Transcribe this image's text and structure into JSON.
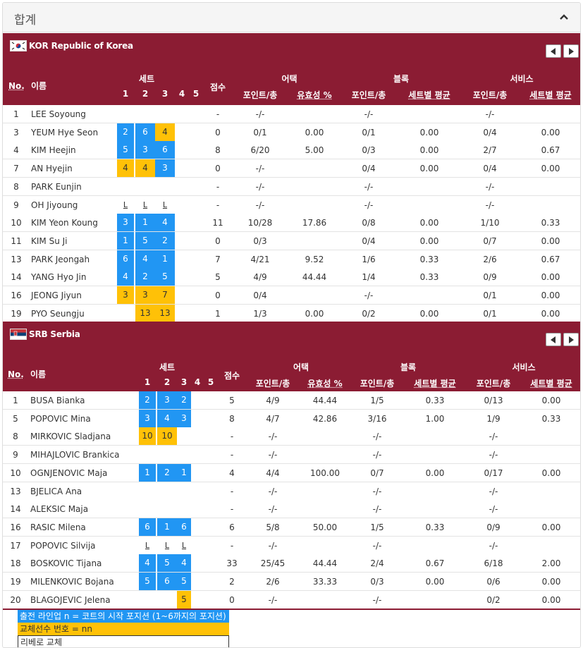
{
  "panel": {
    "title": "합계"
  },
  "headers": {
    "no": "No.",
    "name": "이름",
    "sets": "세트",
    "set_nums": [
      "1",
      "2",
      "3",
      "4",
      "5"
    ],
    "points": "점수",
    "attack": "어택",
    "block": "블록",
    "serve": "서비스",
    "pts_total": "포인트/총",
    "efficiency": "유효성 %",
    "per_set_avg": "세트별 평균"
  },
  "teams": [
    {
      "name": "KOR Republic of Korea",
      "flag": "kor-flag",
      "players": [
        {
          "no": "1",
          "name": "LEE Soyoung",
          "sets": [
            "",
            "",
            "",
            "",
            ""
          ],
          "types": [
            "",
            "",
            "",
            "",
            ""
          ],
          "points": "-",
          "atk_pt": "-/-",
          "atk_eff": "",
          "blk_pt": "-/-",
          "blk_avg": "",
          "srv_pt": "-/-",
          "srv_avg": ""
        },
        {
          "no": "3",
          "name": "YEUM Hye Seon",
          "sets": [
            "2",
            "6",
            "4",
            "",
            ""
          ],
          "types": [
            "start",
            "start",
            "sub",
            "",
            ""
          ],
          "points": "0",
          "atk_pt": "0/1",
          "atk_eff": "0.00",
          "blk_pt": "0/1",
          "blk_avg": "0.00",
          "srv_pt": "0/4",
          "srv_avg": "0.00"
        },
        {
          "no": "4",
          "name": "KIM Heejin",
          "sets": [
            "5",
            "3",
            "6",
            "",
            ""
          ],
          "types": [
            "start",
            "start",
            "start",
            "",
            ""
          ],
          "points": "8",
          "atk_pt": "6/20",
          "atk_eff": "5.00",
          "blk_pt": "0/3",
          "blk_avg": "0.00",
          "srv_pt": "2/7",
          "srv_avg": "0.67"
        },
        {
          "no": "7",
          "name": "AN Hyejin",
          "sets": [
            "4",
            "4",
            "3",
            "",
            ""
          ],
          "types": [
            "sub",
            "sub",
            "start",
            "",
            ""
          ],
          "points": "0",
          "atk_pt": "-/-",
          "atk_eff": "",
          "blk_pt": "0/4",
          "blk_avg": "0.00",
          "srv_pt": "0/4",
          "srv_avg": "0.00"
        },
        {
          "no": "8",
          "name": "PARK Eunjin",
          "sets": [
            "",
            "",
            "",
            "",
            ""
          ],
          "types": [
            "",
            "",
            "",
            "",
            ""
          ],
          "points": "-",
          "atk_pt": "-/-",
          "atk_eff": "",
          "blk_pt": "-/-",
          "blk_avg": "",
          "srv_pt": "-/-",
          "srv_avg": ""
        },
        {
          "no": "9",
          "name": "OH Jiyoung",
          "sets": [
            "L",
            "L",
            "L",
            "",
            ""
          ],
          "types": [
            "lib",
            "lib",
            "lib",
            "",
            ""
          ],
          "points": "-",
          "atk_pt": "-/-",
          "atk_eff": "",
          "blk_pt": "-/-",
          "blk_avg": "",
          "srv_pt": "-/-",
          "srv_avg": ""
        },
        {
          "no": "10",
          "name": "KIM Yeon Koung",
          "sets": [
            "3",
            "1",
            "4",
            "",
            ""
          ],
          "types": [
            "start",
            "start",
            "start",
            "",
            ""
          ],
          "points": "11",
          "atk_pt": "10/28",
          "atk_eff": "17.86",
          "blk_pt": "0/8",
          "blk_avg": "0.00",
          "srv_pt": "1/10",
          "srv_avg": "0.33"
        },
        {
          "no": "11",
          "name": "KIM Su Ji",
          "sets": [
            "1",
            "5",
            "2",
            "",
            ""
          ],
          "types": [
            "start",
            "start",
            "start",
            "",
            ""
          ],
          "points": "0",
          "atk_pt": "0/3",
          "atk_eff": "",
          "blk_pt": "0/4",
          "blk_avg": "0.00",
          "srv_pt": "0/7",
          "srv_avg": "0.00"
        },
        {
          "no": "13",
          "name": "PARK Jeongah",
          "sets": [
            "6",
            "4",
            "1",
            "",
            ""
          ],
          "types": [
            "start",
            "start",
            "start",
            "",
            ""
          ],
          "points": "7",
          "atk_pt": "4/21",
          "atk_eff": "9.52",
          "blk_pt": "1/6",
          "blk_avg": "0.33",
          "srv_pt": "2/6",
          "srv_avg": "0.67"
        },
        {
          "no": "14",
          "name": "YANG Hyo Jin",
          "sets": [
            "4",
            "2",
            "5",
            "",
            ""
          ],
          "types": [
            "start",
            "start",
            "start",
            "",
            ""
          ],
          "points": "5",
          "atk_pt": "4/9",
          "atk_eff": "44.44",
          "blk_pt": "1/4",
          "blk_avg": "0.33",
          "srv_pt": "0/9",
          "srv_avg": "0.00"
        },
        {
          "no": "16",
          "name": "JEONG Jiyun",
          "sets": [
            "3",
            "3",
            "7",
            "",
            ""
          ],
          "types": [
            "sub",
            "sub",
            "sub",
            "",
            ""
          ],
          "points": "0",
          "atk_pt": "0/4",
          "atk_eff": "",
          "blk_pt": "-/-",
          "blk_avg": "",
          "srv_pt": "0/1",
          "srv_avg": "0.00"
        },
        {
          "no": "19",
          "name": "PYO Seungju",
          "sets": [
            "",
            "13",
            "13",
            "",
            ""
          ],
          "types": [
            "",
            "sub",
            "sub",
            "",
            ""
          ],
          "points": "1",
          "atk_pt": "1/3",
          "atk_eff": "0.00",
          "blk_pt": "0/2",
          "blk_avg": "0.00",
          "srv_pt": "0/1",
          "srv_avg": "0.00"
        }
      ]
    },
    {
      "name": "SRB Serbia",
      "flag": "srb-flag",
      "players": [
        {
          "no": "1",
          "name": "BUSA Bianka",
          "sets": [
            "2",
            "3",
            "2",
            "",
            ""
          ],
          "types": [
            "start",
            "start",
            "start",
            "",
            ""
          ],
          "points": "5",
          "atk_pt": "4/9",
          "atk_eff": "44.44",
          "blk_pt": "1/5",
          "blk_avg": "0.33",
          "srv_pt": "0/13",
          "srv_avg": "0.00"
        },
        {
          "no": "5",
          "name": "POPOVIC Mina",
          "sets": [
            "3",
            "4",
            "3",
            "",
            ""
          ],
          "types": [
            "start",
            "start",
            "start",
            "",
            ""
          ],
          "points": "8",
          "atk_pt": "4/7",
          "atk_eff": "42.86",
          "blk_pt": "3/16",
          "blk_avg": "1.00",
          "srv_pt": "1/9",
          "srv_avg": "0.33"
        },
        {
          "no": "8",
          "name": "MIRKOVIC Sladjana",
          "sets": [
            "10",
            "10",
            "",
            "",
            ""
          ],
          "types": [
            "sub",
            "sub",
            "",
            "",
            ""
          ],
          "points": "-",
          "atk_pt": "-/-",
          "atk_eff": "",
          "blk_pt": "-/-",
          "blk_avg": "",
          "srv_pt": "-/-",
          "srv_avg": ""
        },
        {
          "no": "9",
          "name": "MIHAJLOVIC Brankica",
          "sets": [
            "",
            "",
            "",
            "",
            ""
          ],
          "types": [
            "",
            "",
            "",
            "",
            ""
          ],
          "points": "-",
          "atk_pt": "-/-",
          "atk_eff": "",
          "blk_pt": "-/-",
          "blk_avg": "",
          "srv_pt": "-/-",
          "srv_avg": ""
        },
        {
          "no": "10",
          "name": "OGNJENOVIC Maja",
          "sets": [
            "1",
            "2",
            "1",
            "",
            ""
          ],
          "types": [
            "start",
            "start",
            "start",
            "",
            ""
          ],
          "points": "4",
          "atk_pt": "4/4",
          "atk_eff": "100.00",
          "blk_pt": "0/7",
          "blk_avg": "0.00",
          "srv_pt": "0/17",
          "srv_avg": "0.00"
        },
        {
          "no": "13",
          "name": "BJELICA Ana",
          "sets": [
            "",
            "",
            "",
            "",
            ""
          ],
          "types": [
            "",
            "",
            "",
            "",
            ""
          ],
          "points": "-",
          "atk_pt": "-/-",
          "atk_eff": "",
          "blk_pt": "-/-",
          "blk_avg": "",
          "srv_pt": "-/-",
          "srv_avg": ""
        },
        {
          "no": "14",
          "name": "ALEKSIC Maja",
          "sets": [
            "",
            "",
            "",
            "",
            ""
          ],
          "types": [
            "",
            "",
            "",
            "",
            ""
          ],
          "points": "-",
          "atk_pt": "-/-",
          "atk_eff": "",
          "blk_pt": "-/-",
          "blk_avg": "",
          "srv_pt": "-/-",
          "srv_avg": ""
        },
        {
          "no": "16",
          "name": "RASIC Milena",
          "sets": [
            "6",
            "1",
            "6",
            "",
            ""
          ],
          "types": [
            "start",
            "start",
            "start",
            "",
            ""
          ],
          "points": "6",
          "atk_pt": "5/8",
          "atk_eff": "50.00",
          "blk_pt": "1/5",
          "blk_avg": "0.33",
          "srv_pt": "0/9",
          "srv_avg": "0.00"
        },
        {
          "no": "17",
          "name": "POPOVIC Silvija",
          "sets": [
            "L",
            "L",
            "L",
            "",
            ""
          ],
          "types": [
            "lib",
            "lib",
            "lib",
            "",
            ""
          ],
          "points": "-",
          "atk_pt": "-/-",
          "atk_eff": "",
          "blk_pt": "-/-",
          "blk_avg": "",
          "srv_pt": "-/-",
          "srv_avg": ""
        },
        {
          "no": "18",
          "name": "BOSKOVIC Tijana",
          "sets": [
            "4",
            "5",
            "4",
            "",
            ""
          ],
          "types": [
            "start",
            "start",
            "start",
            "",
            ""
          ],
          "points": "33",
          "atk_pt": "25/45",
          "atk_eff": "44.44",
          "blk_pt": "2/4",
          "blk_avg": "0.67",
          "srv_pt": "6/18",
          "srv_avg": "2.00"
        },
        {
          "no": "19",
          "name": "MILENKOVIC Bojana",
          "sets": [
            "5",
            "6",
            "5",
            "",
            ""
          ],
          "types": [
            "start",
            "start",
            "start",
            "",
            ""
          ],
          "points": "2",
          "atk_pt": "2/6",
          "atk_eff": "33.33",
          "blk_pt": "0/3",
          "blk_avg": "0.00",
          "srv_pt": "0/6",
          "srv_avg": "0.00"
        },
        {
          "no": "20",
          "name": "BLAGOJEVIC Jelena",
          "sets": [
            "",
            "",
            "5",
            "",
            ""
          ],
          "types": [
            "",
            "",
            "sub",
            "",
            ""
          ],
          "points": "0",
          "atk_pt": "-/-",
          "atk_eff": "",
          "blk_pt": "-/-",
          "blk_avg": "",
          "srv_pt": "0/2",
          "srv_avg": "0.00"
        }
      ]
    }
  ],
  "legend": {
    "starting": "출전 라인업 n = 코트의 시작 포지션 (1~6까지의 포지션)",
    "substitute": "교체선수 번호 = nn",
    "libero": "리베로 교체"
  },
  "colors": {
    "team_bar": "#8b1c33",
    "starting": "#2196f3",
    "substitute": "#ffc107"
  }
}
